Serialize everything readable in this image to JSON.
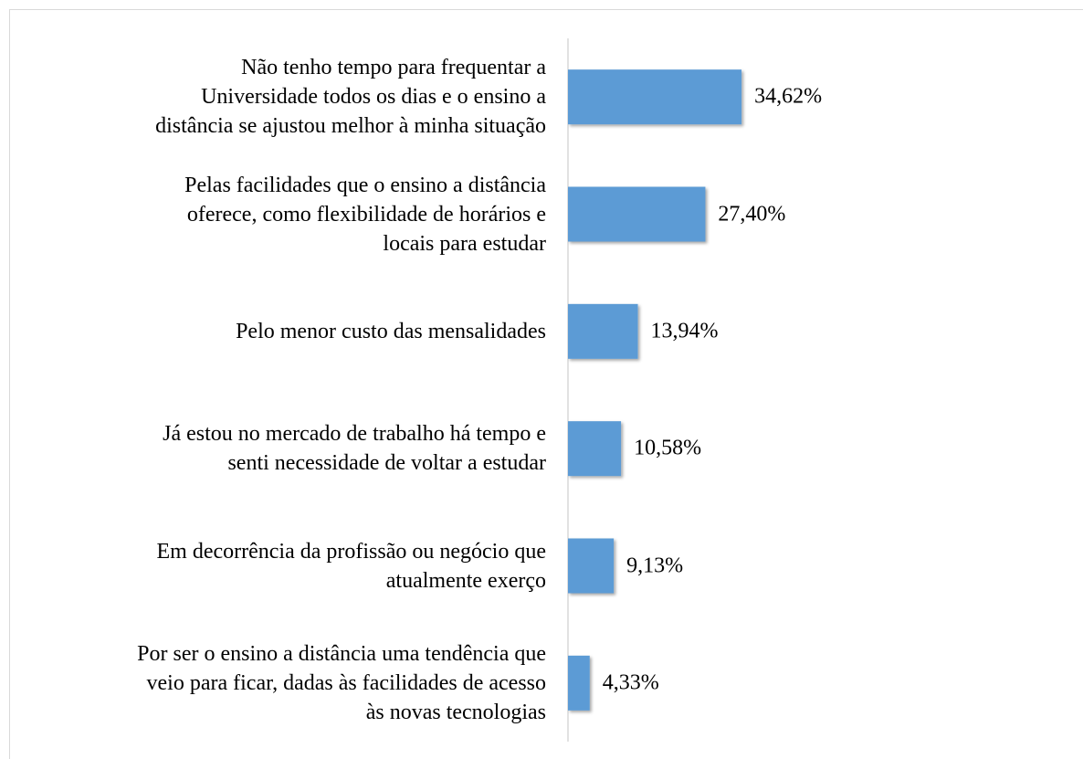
{
  "chart_data": {
    "type": "barh",
    "categories": [
      "Não tenho tempo para frequentar a\nUniversidade todos os dias e o ensino a\ndistância se ajustou melhor à minha situação",
      "Pelas facilidades que o ensino a distância\noferece, como flexibilidade de horários e\nlocais para estudar",
      "Pelo menor custo das mensalidades",
      "Já estou no mercado de trabalho há tempo e\nsenti necessidade de voltar a estudar",
      "Em decorrência da profissão ou negócio que\natualmente exerço",
      "Por ser o ensino a distância uma tendência que\nveio para ficar, dadas às facilidades de acesso\nàs novas tecnologias"
    ],
    "values": [
      34.62,
      27.4,
      13.94,
      10.58,
      9.13,
      4.33
    ],
    "value_labels": [
      "34,62%",
      "27,40%",
      "13,94%",
      "10,58%",
      "9,13%",
      "4,33%"
    ],
    "color": "#5b9bd5"
  }
}
